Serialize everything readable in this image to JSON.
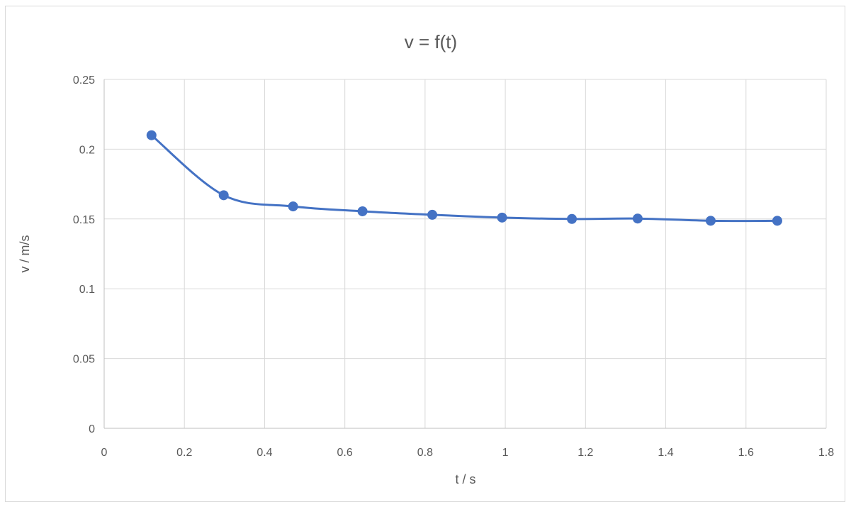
{
  "chart_data": {
    "type": "scatter",
    "title": "v = f(t)",
    "xlabel": "t / s",
    "ylabel": "v / m/s",
    "xlim": [
      0,
      1.8
    ],
    "ylim": [
      0,
      0.25
    ],
    "xticks": [
      "0",
      "0.2",
      "0.4",
      "0.6",
      "0.8",
      "1",
      "1.2",
      "1.4",
      "1.6",
      "1.8"
    ],
    "yticks": [
      "0",
      "0.05",
      "0.1",
      "0.15",
      "0.2",
      "0.25"
    ],
    "grid": true,
    "smooth_line": true,
    "series": [
      {
        "color": "#4472c4",
        "points": [
          {
            "x": 0.118,
            "y": 0.21
          },
          {
            "x": 0.298,
            "y": 0.167
          },
          {
            "x": 0.471,
            "y": 0.159
          },
          {
            "x": 0.644,
            "y": 0.1555
          },
          {
            "x": 0.818,
            "y": 0.153
          },
          {
            "x": 0.992,
            "y": 0.151
          },
          {
            "x": 1.166,
            "y": 0.15
          },
          {
            "x": 1.33,
            "y": 0.1503
          },
          {
            "x": 1.512,
            "y": 0.1487
          },
          {
            "x": 1.678,
            "y": 0.1487
          }
        ]
      }
    ]
  }
}
